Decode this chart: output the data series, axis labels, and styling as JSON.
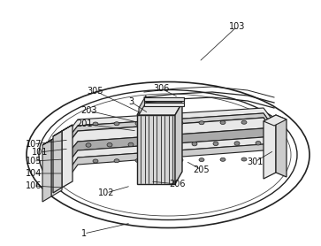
{
  "bg_color": "#ffffff",
  "lc": "#444444",
  "dc": "#222222",
  "lf": "#e8e8e8",
  "mf": "#cccccc",
  "df": "#aaaaaa",
  "vdf": "#888888",
  "figsize": [
    3.63,
    2.78
  ],
  "dpi": 100,
  "labels": [
    [
      "1",
      95,
      264,
      148,
      252
    ],
    [
      "101",
      45,
      172,
      78,
      168
    ],
    [
      "102",
      120,
      218,
      148,
      210
    ],
    [
      "103",
      268,
      30,
      225,
      70
    ],
    [
      "104",
      38,
      196,
      72,
      196
    ],
    [
      "105",
      38,
      182,
      72,
      180
    ],
    [
      "106",
      38,
      210,
      72,
      212
    ],
    [
      "107",
      38,
      163,
      78,
      158
    ],
    [
      "201",
      95,
      140,
      155,
      148
    ],
    [
      "203",
      100,
      125,
      155,
      138
    ],
    [
      "205",
      228,
      192,
      210,
      182
    ],
    [
      "206",
      200,
      208,
      170,
      205
    ],
    [
      "301",
      288,
      183,
      310,
      170
    ],
    [
      "3",
      148,
      115,
      168,
      128
    ],
    [
      "305",
      108,
      103,
      160,
      128
    ],
    [
      "306",
      182,
      100,
      202,
      110
    ]
  ]
}
